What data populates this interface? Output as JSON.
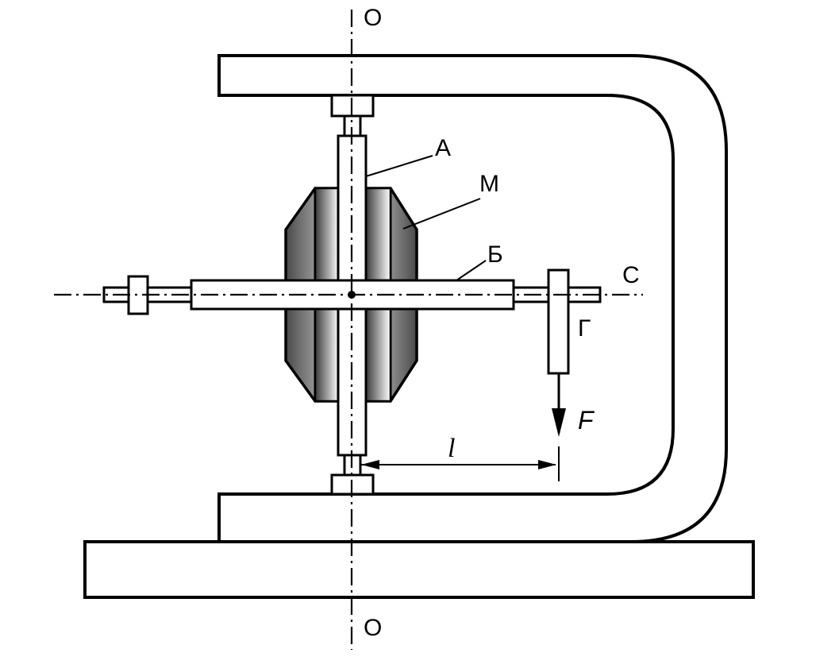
{
  "labels": {
    "axis_top": "O",
    "axis_bottom": "O",
    "axis_right": "C",
    "part_a": "А",
    "part_m": "М",
    "part_b": "Б",
    "part_g": "Г",
    "force": "F",
    "lever_arm": "l"
  },
  "colors": {
    "line": "#000000",
    "background": "#ffffff",
    "rotor_dark": "#3a3a3a",
    "rotor_light": "#ffffff"
  }
}
